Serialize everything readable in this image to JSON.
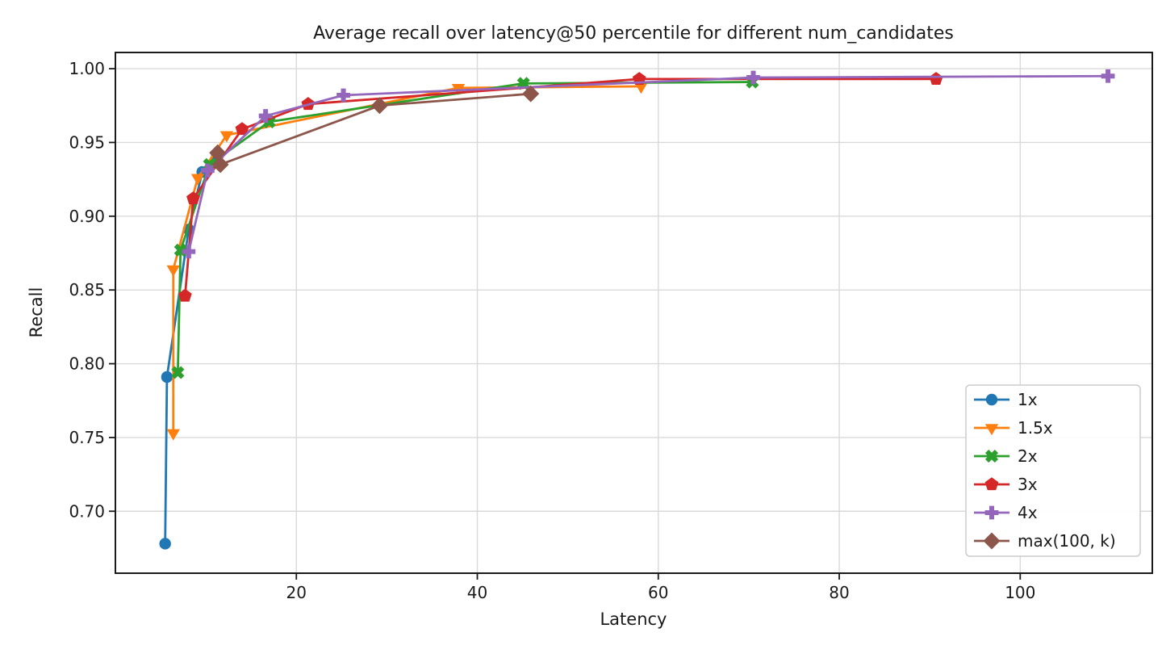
{
  "chart_data": {
    "type": "line",
    "title": "Average recall over latency@50 percentile for different num_candidates",
    "xlabel": "Latency",
    "ylabel": "Recall",
    "xlim": [
      0,
      114.6
    ],
    "ylim": [
      0.658,
      1.011
    ],
    "x_ticks": [
      20,
      40,
      60,
      80,
      100
    ],
    "y_ticks": [
      "0.70",
      "0.75",
      "0.80",
      "0.85",
      "0.90",
      "0.95",
      "1.00"
    ],
    "grid": true,
    "grid_color": "#d9d9d9",
    "spine_color": "#1a1a1a",
    "legend_position": "lower right",
    "legend_border_color": "#cccccc",
    "series": [
      {
        "name": "1x",
        "color": "#1f77b4",
        "marker": "circle",
        "points": [
          [
            5.5,
            0.678
          ],
          [
            5.7,
            0.791
          ],
          [
            8.1,
            0.891
          ],
          [
            9.6,
            0.93
          ],
          [
            11.2,
            0.942
          ]
        ]
      },
      {
        "name": "1.5x",
        "color": "#ff7f0e",
        "marker": "triangle-down",
        "points": [
          [
            6.4,
            0.753
          ],
          [
            6.4,
            0.864
          ],
          [
            9.1,
            0.926
          ],
          [
            12.3,
            0.955
          ],
          [
            37.9,
            0.987
          ],
          [
            58.1,
            0.988
          ]
        ]
      },
      {
        "name": "2x",
        "color": "#2ca02c",
        "marker": "x-thick",
        "points": [
          [
            6.9,
            0.794
          ],
          [
            7.2,
            0.877
          ],
          [
            10.4,
            0.935
          ],
          [
            17.0,
            0.964
          ],
          [
            45.1,
            0.99
          ],
          [
            70.4,
            0.991
          ]
        ]
      },
      {
        "name": "3x",
        "color": "#d62728",
        "marker": "pentagon",
        "points": [
          [
            7.7,
            0.846
          ],
          [
            8.6,
            0.912
          ],
          [
            14.0,
            0.959
          ],
          [
            21.3,
            0.976
          ],
          [
            57.9,
            0.993
          ],
          [
            90.7,
            0.993
          ]
        ]
      },
      {
        "name": "4x",
        "color": "#9467bd",
        "marker": "plus-thick",
        "points": [
          [
            8.1,
            0.876
          ],
          [
            10.2,
            0.931
          ],
          [
            16.6,
            0.968
          ],
          [
            25.2,
            0.982
          ],
          [
            70.5,
            0.994
          ],
          [
            109.7,
            0.995
          ]
        ]
      },
      {
        "name": "max(100, k)",
        "color": "#8c564b",
        "marker": "diamond",
        "points": [
          [
            11.3,
            0.943
          ],
          [
            11.6,
            0.935
          ],
          [
            29.2,
            0.975
          ],
          [
            45.9,
            0.983
          ]
        ]
      }
    ]
  }
}
